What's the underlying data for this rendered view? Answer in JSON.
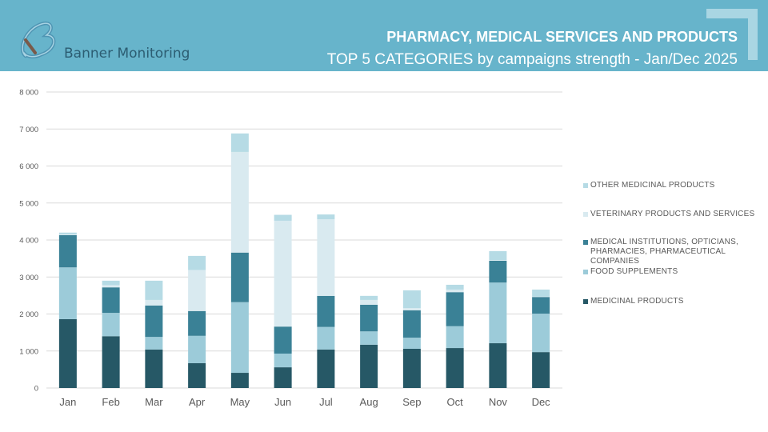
{
  "header": {
    "brand": "Banner Monitoring",
    "title": "PHARMACY, MEDICAL SERVICES AND PRODUCTS",
    "subtitle": "TOP 5 CATEGORIES by campaigns strength - Jan/Dec 2025",
    "background_color": "#67b4cb"
  },
  "chart_data": {
    "type": "bar",
    "stacked": true,
    "title": "TOP 5 CATEGORIES by campaigns strength - Jan/Dec 2025",
    "xlabel": "",
    "ylabel": "",
    "ylim": [
      0,
      8000
    ],
    "yticks": [
      0,
      1000,
      2000,
      3000,
      4000,
      5000,
      6000,
      7000,
      8000
    ],
    "ytick_labels": [
      "0",
      "1 000",
      "2 000",
      "3 000",
      "4 000",
      "5 000",
      "6 000",
      "7 000",
      "8 000"
    ],
    "grid": true,
    "legend_position": "right",
    "categories": [
      "Jan",
      "Feb",
      "Mar",
      "Apr",
      "May",
      "Jun",
      "Jul",
      "Aug",
      "Sep",
      "Oct",
      "Nov",
      "Dec"
    ],
    "series": [
      {
        "name": "MEDICINAL PRODUCTS",
        "color": "#265866",
        "values": [
          1860,
          1400,
          1040,
          670,
          410,
          560,
          1040,
          1170,
          1060,
          1080,
          1210,
          970
        ]
      },
      {
        "name": "FOOD SUPPLEMENTS",
        "color": "#9ccbd9",
        "values": [
          1400,
          630,
          340,
          740,
          1910,
          370,
          610,
          360,
          300,
          590,
          1640,
          1040
        ]
      },
      {
        "name": "MEDICAL INSTITUTIONS, OPTICIANS, PHARMACIES, PHARMACEUTICAL COMPANIES",
        "color": "#3a8196",
        "values": [
          870,
          690,
          850,
          670,
          1340,
          730,
          840,
          720,
          740,
          920,
          590,
          450
        ]
      },
      {
        "name": "VETERINARY PRODUCTS AND SERVICES",
        "color": "#d9eaf0",
        "values": [
          20,
          60,
          150,
          1110,
          2720,
          2860,
          2070,
          130,
          60,
          70,
          20,
          10
        ]
      },
      {
        "name": "OTHER MEDICINAL PRODUCTS",
        "color": "#b6dbe5",
        "values": [
          50,
          120,
          520,
          380,
          500,
          160,
          130,
          110,
          480,
          130,
          240,
          190
        ]
      }
    ],
    "legend_order": [
      "OTHER MEDICINAL PRODUCTS",
      "VETERINARY PRODUCTS AND SERVICES",
      "MEDICAL INSTITUTIONS, OPTICIANS, PHARMACIES, PHARMACEUTICAL COMPANIES",
      "FOOD SUPPLEMENTS",
      "MEDICINAL PRODUCTS"
    ]
  },
  "legend": {
    "items": [
      {
        "label": "OTHER MEDICINAL PRODUCTS",
        "color": "#b6dbe5",
        "lines": [
          "OTHER MEDICINAL PRODUCTS"
        ]
      },
      {
        "label": "VETERINARY PRODUCTS AND SERVICES",
        "color": "#d9eaf0",
        "lines": [
          "VETERINARY PRODUCTS AND SERVICES"
        ]
      },
      {
        "label": "MEDICAL INSTITUTIONS, OPTICIANS, PHARMACIES, PHARMACEUTICAL COMPANIES",
        "color": "#3a8196",
        "lines": [
          "MEDICAL INSTITUTIONS, OPTICIANS,",
          "PHARMACIES, PHARMACEUTICAL",
          "COMPANIES"
        ]
      },
      {
        "label": "FOOD SUPPLEMENTS",
        "color": "#9ccbd9",
        "lines": [
          "FOOD SUPPLEMENTS"
        ]
      },
      {
        "label": "MEDICINAL PRODUCTS",
        "color": "#265866",
        "lines": [
          "MEDICINAL PRODUCTS"
        ]
      }
    ]
  }
}
